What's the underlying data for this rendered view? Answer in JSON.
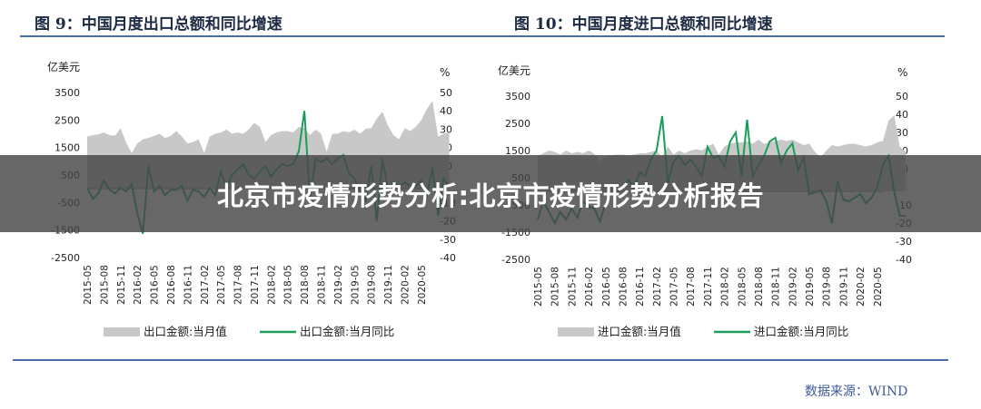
{
  "banner_text": "北京市疫情形势分析:北京市疫情形势分析报告",
  "source": "数据来源：WIND",
  "x_tick_labels": [
    "2015-05",
    "2015-08",
    "2015-11",
    "2016-02",
    "2016-05",
    "2016-08",
    "2016-11",
    "2017-02",
    "2017-05",
    "2017-08",
    "2017-11",
    "2018-02",
    "2018-05",
    "2018-08",
    "2018-11",
    "2019-02",
    "2019-05",
    "2019-08",
    "2019-11",
    "2020-02",
    "2020-05"
  ],
  "colors": {
    "area": "#c8c8c8",
    "line": "#1b9e5a",
    "title": "#1c2a44",
    "rule": "#4a6fa5",
    "source": "#3d5a9a"
  },
  "chart_data": [
    {
      "type": "area+line",
      "title": "图 9：中国月度出口总额和同比增速",
      "ylabel_left": "亿美元",
      "ylabel_right": "%",
      "ylim_left": [
        -2500,
        3500
      ],
      "yticks_left": [
        3500,
        2500,
        1500,
        500,
        -500,
        -1500,
        -2500
      ],
      "ylim_right": [
        -40,
        50
      ],
      "yticks_right": [
        50,
        40,
        30,
        20,
        10,
        0,
        -10,
        -20,
        -30,
        -40
      ],
      "x_start": "2015-05",
      "x_end": "2020-06",
      "series": [
        {
          "name": "出口金额:当月值",
          "axis": "left",
          "kind": "area",
          "values": [
            1900,
            1950,
            1980,
            2050,
            1950,
            1930,
            2200,
            1680,
            1300,
            1650,
            1800,
            1850,
            1920,
            2000,
            1850,
            1920,
            2100,
            1900,
            1650,
            1700,
            1800,
            1300,
            1900,
            2000,
            2050,
            2150,
            2000,
            2050,
            2000,
            2150,
            2400,
            2250,
            1700,
            1950,
            2050,
            2100,
            2100,
            2050,
            2250,
            2200,
            1950,
            2150,
            2000,
            1350,
            2000,
            2000,
            2100,
            2050,
            2150,
            2000,
            2180,
            2200,
            2550,
            2800,
            2300,
            1950,
            1800,
            2200,
            2100,
            2250,
            2500,
            2900,
            3200,
            1900,
            2000,
            2050
          ]
        },
        {
          "name": "出口金额:当月同比",
          "axis": "right",
          "kind": "line",
          "values": [
            -2,
            -8,
            -5,
            2,
            -3,
            -5,
            -2,
            -4,
            0,
            -16,
            -27,
            10,
            -4,
            -1,
            -6,
            -3,
            -3,
            -1,
            -9,
            -3,
            -4,
            -7,
            -2,
            -6,
            7,
            -2,
            5,
            8,
            11,
            5,
            3,
            7,
            10,
            4,
            8,
            11,
            10,
            11,
            18,
            40,
            -8,
            14,
            12,
            14,
            11,
            14,
            16,
            6,
            3,
            -4,
            -9,
            10,
            -20,
            14,
            -3,
            1,
            -1,
            1,
            -1,
            -1,
            2,
            -6,
            9,
            -17,
            3,
            -1
          ]
        }
      ],
      "legend": [
        "出口金额:当月值",
        "出口金额:当月同比"
      ]
    },
    {
      "type": "area+line",
      "title": "图 10：中国月度进口总额和同比增速",
      "ylabel_left": "亿美元",
      "ylabel_right": "%",
      "ylim_left": [
        -2500,
        3500
      ],
      "yticks_left": [
        3500,
        2500,
        1500,
        500,
        -500,
        -1500,
        -2500
      ],
      "ylim_right": [
        -40,
        50
      ],
      "yticks_right": [
        50,
        40,
        30,
        20,
        10,
        0,
        -10,
        -20,
        -30,
        -40
      ],
      "x_start": "2015-05",
      "x_end": "2020-06",
      "series": [
        {
          "name": "进口金额:当月值",
          "axis": "left",
          "kind": "area",
          "values": [
            1300,
            1400,
            1500,
            1450,
            1350,
            1500,
            1400,
            1450,
            1400,
            1500,
            1380,
            1100,
            1300,
            1320,
            1350,
            1350,
            1320,
            1350,
            1400,
            1400,
            1450,
            1500,
            1250,
            1650,
            1350,
            1500,
            1400,
            1500,
            1550,
            1500,
            1650,
            1750,
            1350,
            1650,
            1750,
            1800,
            1800,
            1850,
            1750,
            1900,
            1750,
            1800,
            1850,
            1900,
            1850,
            1900,
            1800,
            1700,
            1750,
            1450,
            1250,
            1500,
            1700,
            1650,
            1700,
            1750,
            1750,
            1700,
            1650,
            1700,
            1800,
            1850,
            2600,
            2800,
            1600,
            1500
          ]
        },
        {
          "name": "进口金额:当月同比",
          "axis": "right",
          "kind": "line",
          "values": [
            -18,
            -8,
            -14,
            -20,
            -14,
            -18,
            -12,
            -17,
            -8,
            -11,
            -12,
            -19,
            -9,
            -4,
            -4,
            0,
            4,
            -1,
            8,
            6,
            15,
            20,
            39,
            2,
            14,
            17,
            12,
            15,
            11,
            6,
            22,
            16,
            17,
            11,
            25,
            30,
            6,
            37,
            6,
            12,
            17,
            25,
            27,
            13,
            20,
            24,
            9,
            16,
            -4,
            -3,
            -2,
            -8,
            -20,
            3,
            -7,
            -8,
            -6,
            -4,
            -9,
            -6,
            0,
            12,
            17,
            -3,
            -16,
            -16
          ]
        }
      ],
      "legend": [
        "进口金额:当月值",
        "进口金额:当月同比"
      ]
    }
  ]
}
